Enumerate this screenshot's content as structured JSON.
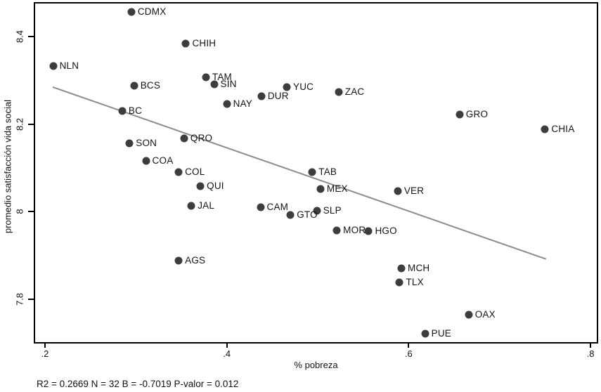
{
  "chart_data": {
    "type": "scatter",
    "title": "",
    "xlabel": "% pobreza",
    "ylabel": "promedio satisfacción vida social",
    "stats_note": "R2 = 0.2669 N = 32 B = -0.7019 P-valor = 0.012",
    "xlim": [
      0.1892,
      0.8069
    ],
    "ylim": [
      7.702,
      8.476
    ],
    "grid": false,
    "legend": "none",
    "x_ticks": [
      {
        "value": 0.2,
        "label": ".2"
      },
      {
        "value": 0.4,
        "label": ".4"
      },
      {
        "value": 0.6,
        "label": ".6"
      },
      {
        "value": 0.8,
        "label": ".8"
      }
    ],
    "y_ticks": [
      {
        "value": 7.8,
        "label": "7.8"
      },
      {
        "value": 8.0,
        "label": "8"
      },
      {
        "value": 8.2,
        "label": "8.2"
      },
      {
        "value": 8.4,
        "label": "8.4"
      }
    ],
    "points": [
      {
        "label": "CDMX",
        "x": 0.295,
        "y": 8.457
      },
      {
        "label": "CHIH",
        "x": 0.355,
        "y": 8.384
      },
      {
        "label": "NLN",
        "x": 0.209,
        "y": 8.333
      },
      {
        "label": "TAM",
        "x": 0.377,
        "y": 8.307
      },
      {
        "label": "SIN",
        "x": 0.386,
        "y": 8.291
      },
      {
        "label": "BCS",
        "x": 0.298,
        "y": 8.288
      },
      {
        "label": "YUC",
        "x": 0.466,
        "y": 8.285
      },
      {
        "label": "ZAC",
        "x": 0.523,
        "y": 8.273
      },
      {
        "label": "DUR",
        "x": 0.438,
        "y": 8.264
      },
      {
        "label": "NAY",
        "x": 0.4,
        "y": 8.247
      },
      {
        "label": "BC",
        "x": 0.285,
        "y": 8.23
      },
      {
        "label": "GRO",
        "x": 0.656,
        "y": 8.223
      },
      {
        "label": "CHIA",
        "x": 0.75,
        "y": 8.189
      },
      {
        "label": "QRO",
        "x": 0.353,
        "y": 8.167
      },
      {
        "label": "SON",
        "x": 0.293,
        "y": 8.157
      },
      {
        "label": "COA",
        "x": 0.311,
        "y": 8.117
      },
      {
        "label": "COL",
        "x": 0.347,
        "y": 8.09
      },
      {
        "label": "TAB",
        "x": 0.494,
        "y": 8.091
      },
      {
        "label": "QUI",
        "x": 0.371,
        "y": 8.059
      },
      {
        "label": "MEX",
        "x": 0.503,
        "y": 8.052
      },
      {
        "label": "VER",
        "x": 0.588,
        "y": 8.048
      },
      {
        "label": "JAL",
        "x": 0.361,
        "y": 8.014
      },
      {
        "label": "CAM",
        "x": 0.437,
        "y": 8.011
      },
      {
        "label": "SLP",
        "x": 0.499,
        "y": 8.002
      },
      {
        "label": "GTO",
        "x": 0.47,
        "y": 7.992
      },
      {
        "label": "MOR",
        "x": 0.521,
        "y": 7.957
      },
      {
        "label": "HGO",
        "x": 0.556,
        "y": 7.955
      },
      {
        "label": "AGS",
        "x": 0.347,
        "y": 7.889
      },
      {
        "label": "MCH",
        "x": 0.592,
        "y": 7.871
      },
      {
        "label": "TLX",
        "x": 0.59,
        "y": 7.838
      },
      {
        "label": "OAX",
        "x": 0.666,
        "y": 7.765
      },
      {
        "label": "PUE",
        "x": 0.618,
        "y": 7.721
      }
    ],
    "fit_line": {
      "x1": 0.2085,
      "y1": 8.285,
      "x2": 0.751,
      "y2": 7.892
    },
    "colors": {
      "dot": "#3d3d3d",
      "fit_line": "#8c8c8c",
      "axis": "#000000",
      "background": "#ffffff"
    }
  }
}
